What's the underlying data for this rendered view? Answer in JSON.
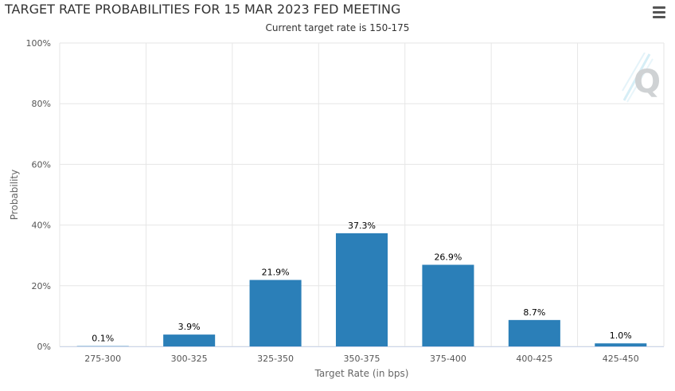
{
  "header": {
    "menu_icon": "hamburger-menu-icon",
    "watermark_icon": "q-logo-icon"
  },
  "chart_data": {
    "type": "bar",
    "title": "TARGET RATE PROBABILITIES FOR 15 MAR 2023 FED MEETING",
    "subtitle": "Current target rate is 150-175",
    "xlabel": "Target Rate (in bps)",
    "ylabel": "Probability",
    "categories": [
      "275-300",
      "300-325",
      "325-350",
      "350-375",
      "375-400",
      "400-425",
      "425-450"
    ],
    "values": [
      0.1,
      3.9,
      21.9,
      37.3,
      26.9,
      8.7,
      1.0
    ],
    "value_labels": [
      "0.1%",
      "3.9%",
      "21.9%",
      "37.3%",
      "26.9%",
      "8.7%",
      "1.0%"
    ],
    "ylim": [
      0,
      100
    ],
    "yticks": [
      0,
      20,
      40,
      60,
      80,
      100
    ],
    "ytick_labels": [
      "0%",
      "20%",
      "40%",
      "60%",
      "80%",
      "100%"
    ],
    "grid": true,
    "bar_color": "#2b7fb8"
  }
}
